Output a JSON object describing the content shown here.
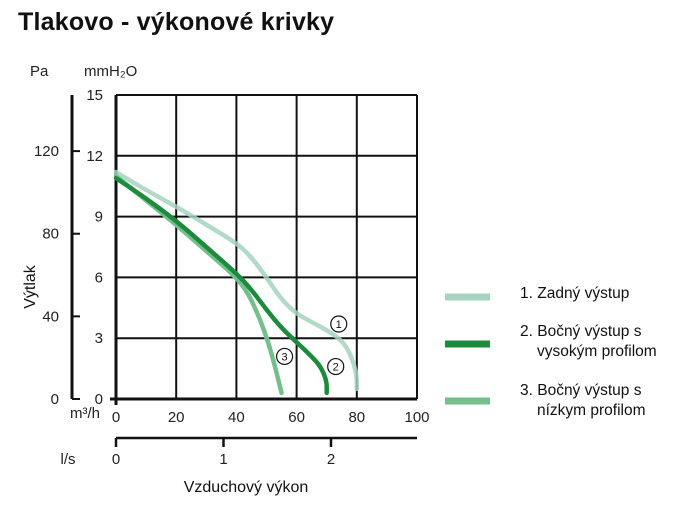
{
  "title": "Tlakovo - výkonové krivky",
  "chart_data": {
    "type": "line",
    "title": "Tlakovo - výkonové krivky",
    "xlabel": "Vzduchový výkon",
    "ylabel": "Výtlak",
    "x_unit": "m3/h",
    "x_unit_display": "m³/h",
    "x2_unit": "l/s",
    "y_unit": "mmH2O",
    "y_unit_display": "mmH₂O",
    "y2_unit": "Pa",
    "xlim": [
      0,
      100
    ],
    "ylim": [
      0,
      15
    ],
    "x_ticks": [
      "0",
      "20",
      "40",
      "60",
      "80",
      "100"
    ],
    "y_ticks": [
      "0",
      "3",
      "6",
      "9",
      "12",
      "15"
    ],
    "x2_ticks": [
      {
        "value": 0,
        "label": "0"
      },
      {
        "value": 1,
        "label": "1"
      },
      {
        "value": 2,
        "label": "2"
      }
    ],
    "y2_ticks": [
      {
        "value": 0,
        "label": "0"
      },
      {
        "value": 40,
        "label": "40"
      },
      {
        "value": 80,
        "label": "80"
      },
      {
        "value": 120,
        "label": "120"
      }
    ],
    "grid": true,
    "legend_position": "right",
    "series": [
      {
        "name": "1. Zadný výstup",
        "marker_label": "1",
        "color": "#a6d4bf",
        "points": [
          [
            0,
            11.2
          ],
          [
            10,
            10.3
          ],
          [
            20,
            9.5
          ],
          [
            30,
            8.6
          ],
          [
            40,
            7.7
          ],
          [
            45,
            7.0
          ],
          [
            50,
            6.0
          ],
          [
            55,
            4.9
          ],
          [
            60,
            4.2
          ],
          [
            65,
            3.8
          ],
          [
            70,
            3.4
          ],
          [
            75,
            2.9
          ],
          [
            78,
            2.2
          ],
          [
            80,
            1.2
          ],
          [
            80,
            0.5
          ]
        ],
        "label_at": [
          74,
          3.7
        ]
      },
      {
        "name": "2. Bočný výstup s vysokým profilom",
        "marker_label": "2",
        "color": "#1e8a3e",
        "points": [
          [
            0,
            10.9
          ],
          [
            10,
            9.9
          ],
          [
            20,
            8.8
          ],
          [
            30,
            7.5
          ],
          [
            40,
            6.2
          ],
          [
            45,
            5.4
          ],
          [
            50,
            4.4
          ],
          [
            55,
            3.5
          ],
          [
            60,
            2.8
          ],
          [
            65,
            2.1
          ],
          [
            68,
            1.6
          ],
          [
            70,
            0.9
          ],
          [
            70,
            0.3
          ]
        ],
        "label_at": [
          73,
          1.6
        ]
      },
      {
        "name": "3. Bočný výstup s nízkym profilom",
        "marker_label": "3",
        "color": "#74bf8b",
        "points": [
          [
            0,
            11.0
          ],
          [
            10,
            9.8
          ],
          [
            20,
            8.6
          ],
          [
            30,
            7.3
          ],
          [
            40,
            6.0
          ],
          [
            44,
            5.2
          ],
          [
            48,
            3.9
          ],
          [
            51,
            2.6
          ],
          [
            53,
            1.5
          ],
          [
            55,
            0.3
          ]
        ],
        "label_at": [
          56,
          2.1
        ]
      }
    ],
    "legend": [
      {
        "line1": "1. Zadný výstup",
        "line2": ""
      },
      {
        "line1": "2. Bočný výstup s",
        "line2": "vysokým profilom"
      },
      {
        "line1": "3. Bočný výstup s",
        "line2": "nízkym profilom"
      }
    ]
  }
}
